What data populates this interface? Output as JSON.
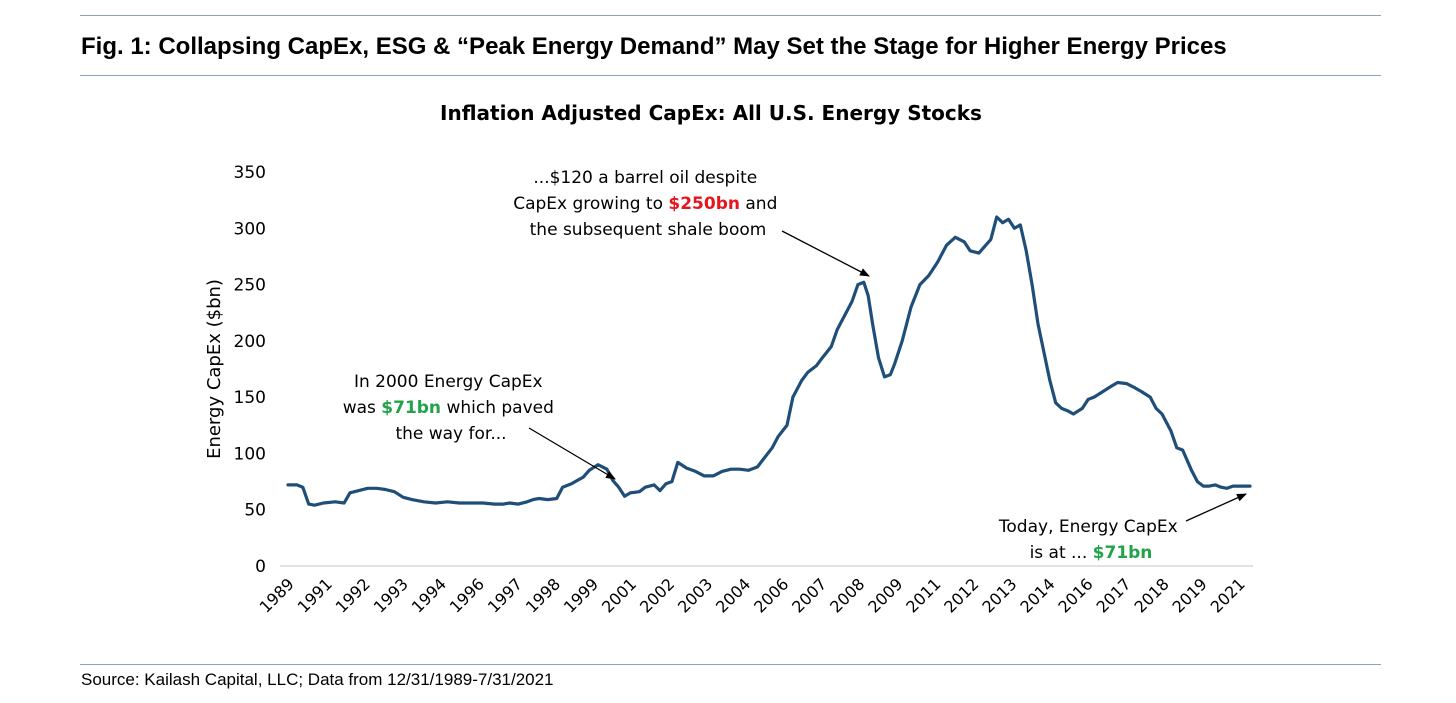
{
  "figure": {
    "title": "Fig. 1:  Collapsing CapEx, ESG & “Peak Energy Demand” May Set the Stage for Higher Energy Prices",
    "source": "Source: Kailash Capital, LLC; Data from 12/31/1989-7/31/2021"
  },
  "colors": {
    "line": "#1f4e79",
    "rule": "#8ea2bd",
    "axis": "#d9d9d9",
    "highlight_red": "#e8141b",
    "highlight_green": "#22a34a"
  },
  "chart_data": {
    "type": "line",
    "title": "Inflation Adjusted CapEx: All U.S. Energy Stocks",
    "xlabel": "",
    "ylabel": "Energy CapEx ($bn)",
    "ylim": [
      0,
      350
    ],
    "yticks": [
      0,
      50,
      100,
      150,
      200,
      250,
      300,
      350
    ],
    "xlim": [
      1989.0,
      2021.58
    ],
    "xtick_labels": [
      "1989",
      "1991",
      "1992",
      "1993",
      "1994",
      "1996",
      "1997",
      "1998",
      "1999",
      "2001",
      "2002",
      "2003",
      "2004",
      "2006",
      "2007",
      "2008",
      "2009",
      "2011",
      "2012",
      "2013",
      "2014",
      "2016",
      "2017",
      "2018",
      "2019",
      "2021"
    ],
    "grid": false,
    "legend": "none",
    "series": [
      {
        "x": [
          1989.0,
          1989.3,
          1989.5,
          1989.7,
          1989.9,
          1990.2,
          1990.6,
          1990.9,
          1991.1,
          1991.4,
          1991.7,
          1992.0,
          1992.3,
          1992.6,
          1992.9,
          1993.2,
          1993.6,
          1994.0,
          1994.4,
          1994.8,
          1995.2,
          1995.6,
          1996.0,
          1996.3,
          1996.5,
          1996.8,
          1997.1,
          1997.3,
          1997.5,
          1997.8,
          1998.1,
          1998.3,
          1998.6,
          1998.8,
          1999.0,
          1999.2,
          1999.5,
          1999.8,
          2000.0,
          2000.2,
          2000.4,
          2000.6,
          2000.9,
          2001.1,
          2001.4,
          2001.6,
          2001.8,
          2002.0,
          2002.2,
          2002.5,
          2002.8,
          2003.1,
          2003.4,
          2003.7,
          2004.0,
          2004.3,
          2004.6,
          2004.9,
          2005.1,
          2005.4,
          2005.6,
          2005.9,
          2006.1,
          2006.4,
          2006.6,
          2006.9,
          2007.1,
          2007.4,
          2007.6,
          2007.9,
          2008.1,
          2008.3,
          2008.5,
          2008.65,
          2008.8,
          2009.0,
          2009.2,
          2009.4,
          2009.55,
          2009.8,
          2010.1,
          2010.4,
          2010.7,
          2011.0,
          2011.3,
          2011.6,
          2011.9,
          2012.1,
          2012.4,
          2012.6,
          2012.8,
          2013.0,
          2013.2,
          2013.4,
          2013.6,
          2013.8,
          2014.0,
          2014.2,
          2014.4,
          2014.6,
          2014.8,
          2015.0,
          2015.2,
          2015.4,
          2015.6,
          2015.9,
          2016.1,
          2016.3,
          2016.6,
          2016.9,
          2017.1,
          2017.4,
          2017.7,
          2017.9,
          2018.2,
          2018.4,
          2018.6,
          2018.9,
          2019.1,
          2019.3,
          2019.6,
          2019.8,
          2020.0,
          2020.2,
          2020.4,
          2020.6,
          2020.8,
          2021.0,
          2021.2,
          2021.4,
          2021.58
        ],
        "values": [
          72,
          72,
          70,
          55,
          54,
          56,
          57,
          56,
          65,
          67,
          69,
          69,
          68,
          66,
          61,
          59,
          57,
          56,
          57,
          56,
          56,
          56,
          55,
          55,
          56,
          55,
          57,
          59,
          60,
          59,
          60,
          70,
          73,
          76,
          79,
          85,
          90,
          86,
          76,
          70,
          62,
          65,
          66,
          70,
          72,
          67,
          73,
          75,
          92,
          87,
          84,
          80,
          80,
          84,
          86,
          86,
          85,
          88,
          95,
          105,
          115,
          125,
          150,
          165,
          172,
          178,
          185,
          195,
          210,
          225,
          235,
          250,
          252,
          240,
          215,
          185,
          168,
          170,
          180,
          200,
          230,
          250,
          258,
          270,
          285,
          292,
          288,
          280,
          278,
          284,
          290,
          310,
          305,
          308,
          300,
          303,
          280,
          250,
          215,
          190,
          165,
          145,
          140,
          138,
          135,
          140,
          148,
          150,
          155,
          160,
          163,
          162,
          158,
          155,
          150,
          140,
          135,
          120,
          105,
          103,
          85,
          75,
          71,
          71,
          72,
          70,
          69,
          71,
          71,
          71,
          71
        ]
      }
    ],
    "annotations": [
      {
        "id": "peak",
        "lines": [
          [
            {
              "text": "...$120 a barrel oil despite",
              "color": "black"
            }
          ],
          [
            {
              "text": "CapEx growing to ",
              "color": "black"
            },
            {
              "text": "$250bn",
              "color": "red"
            },
            {
              "text": " and",
              "color": "black"
            }
          ],
          [
            {
              "text": "the subsequent shale boom",
              "color": "black"
            }
          ]
        ]
      },
      {
        "id": "y2000",
        "lines": [
          [
            {
              "text": "In 2000 Energy CapEx",
              "color": "black"
            }
          ],
          [
            {
              "text": "was ",
              "color": "black"
            },
            {
              "text": "$71bn",
              "color": "green"
            },
            {
              "text": " which paved",
              "color": "black"
            }
          ],
          [
            {
              "text": "the way for...",
              "color": "black"
            }
          ]
        ]
      },
      {
        "id": "today",
        "lines": [
          [
            {
              "text": "Today, Energy CapEx",
              "color": "black"
            }
          ],
          [
            {
              "text": "is at ... ",
              "color": "black"
            },
            {
              "text": "$71bn",
              "color": "green"
            }
          ]
        ]
      }
    ]
  }
}
